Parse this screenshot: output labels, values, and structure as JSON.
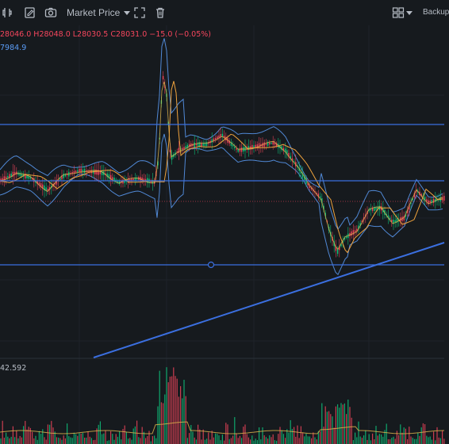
{
  "toolbar": {
    "market_price_label": "Market Price",
    "backup_label": "Backup",
    "icons": [
      "indicator-icon",
      "edit-icon",
      "camera-icon",
      "expand-icon",
      "trash-icon",
      "layout-grid-icon"
    ]
  },
  "legend": {
    "ohlc": "28046.0 H28048.0 L28030.5 C28031.0 −15.0 (−0.05%)",
    "ma_value": "7984.9",
    "volume_value": "42.592"
  },
  "colors": {
    "background": "#161a1e",
    "candle_up": "#0ecb81",
    "candle_down": "#f6465d",
    "bollinger": "#5b9cf6",
    "moving_average": "#f0a33d",
    "drawing_line": "#3b6fe0"
  }
}
